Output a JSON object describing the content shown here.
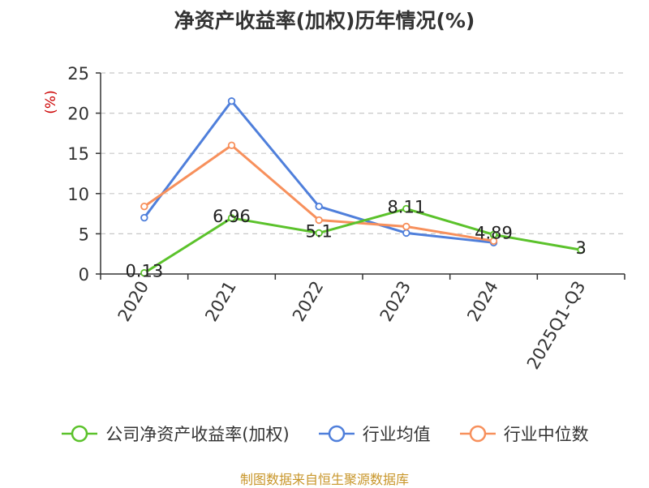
{
  "title": "净资产收益率(加权)历年情况(%)",
  "source": "制图数据来自恒生聚源数据库",
  "colors": {
    "company": "#5bc22b",
    "industry_avg": "#4f7fdb",
    "industry_median": "#f7905c",
    "grid": "#c8c8c8",
    "axis": "#333333",
    "unit": "#cc0000"
  },
  "chart_data": {
    "type": "line",
    "title": "净资产收益率(加权)历年情况(%)",
    "ylabel": "(%)",
    "xlabel": "",
    "categories": [
      "2020",
      "2021",
      "2022",
      "2023",
      "2024",
      "2025Q1-Q3"
    ],
    "ylim": [
      0,
      25
    ],
    "yticks": [
      0,
      5,
      10,
      15,
      20,
      25
    ],
    "grid": true,
    "legend_position": "bottom",
    "series": [
      {
        "name": "公司净资产收益率(加权)",
        "key": "company",
        "values": [
          0.13,
          6.96,
          5.1,
          8.11,
          4.89,
          3
        ],
        "labels": [
          "0.13",
          "6.96",
          "5.1",
          "8.11",
          "4.89",
          "3"
        ]
      },
      {
        "name": "行业均值",
        "key": "industry_avg",
        "values": [
          7.0,
          21.5,
          8.4,
          5.1,
          3.9,
          null
        ]
      },
      {
        "name": "行业中位数",
        "key": "industry_median",
        "values": [
          8.4,
          16.0,
          6.7,
          5.9,
          4.1,
          null
        ]
      }
    ]
  }
}
